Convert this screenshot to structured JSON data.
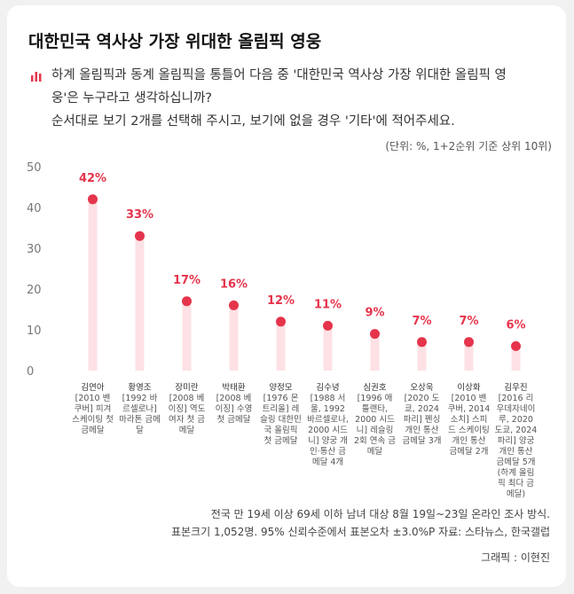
{
  "chart_data": {
    "type": "lollipop",
    "title": "대한민국 역사상 가장 위대한 올림픽 영웅",
    "question": [
      "하계 올림픽과 동계 올림픽을 통틀어 다음 중 '대한민국 역사상 가장 위대한 올림픽 영",
      "웅'은 누구라고 생각하십니까?",
      "순서대로 보기 2개를 선택해 주시고, 보기에 없을 경우 '기타'에 적어주세요."
    ],
    "unit_note": "(단위: %, 1+2순위 기준 상위 10위)",
    "categories": [
      "김연아",
      "황영조",
      "장미란",
      "박태환",
      "양정모",
      "김수녕",
      "심권호",
      "오상욱",
      "이상화",
      "김우진"
    ],
    "category_notes": [
      "[2010 밴쿠버] 피겨 스케이팅 첫 금메달",
      "[1992 바르셀로나] 마라톤 금메달",
      "[2008 베이징] 역도 여자 첫 금메달",
      "[2008 베이징] 수영 첫 금메달",
      "[1976 몬트리올] 레슬링 대한민국 올림픽 첫 금메달",
      "[1988 서울, 1992 바르셀로나, 2000 시드니] 양궁 개인·통산 금메달 4개",
      "[1996 애틀랜타, 2000 시드니] 레슬링 2회 연속 금메달",
      "[2020 도쿄, 2024 파리] 펜싱 개인 통산 금메달 3개",
      "[2010 밴쿠버, 2014 소치] 스피드 스케이팅 개인 통산 금메달 2개",
      "[2016 리우데자네이루, 2020 도쿄, 2024 파리] 양궁 개인 통산 금메달 5개(하계 올림픽 최다 금메달)"
    ],
    "values": [
      42,
      33,
      17,
      16,
      12,
      11,
      9,
      7,
      7,
      6
    ],
    "value_labels": [
      "42%",
      "33%",
      "17%",
      "16%",
      "12%",
      "11%",
      "9%",
      "7%",
      "7%",
      "6%"
    ],
    "color": "#e5344b",
    "bar_color": "#fde1e4",
    "ylim": [
      0,
      50
    ],
    "yticks": [
      0,
      10,
      20,
      30,
      40,
      50
    ],
    "footnotes": [
      "전국 만 19세 이상 69세 이하 남녀 대상 8월 19일~23일 온라인 조사 방식.",
      "표본크기 1,052명. 95% 신뢰수준에서 표본오차 ±3.0%P 자료: 스타뉴스, 한국갤럽"
    ],
    "credit": "그래픽 : 이현진"
  }
}
